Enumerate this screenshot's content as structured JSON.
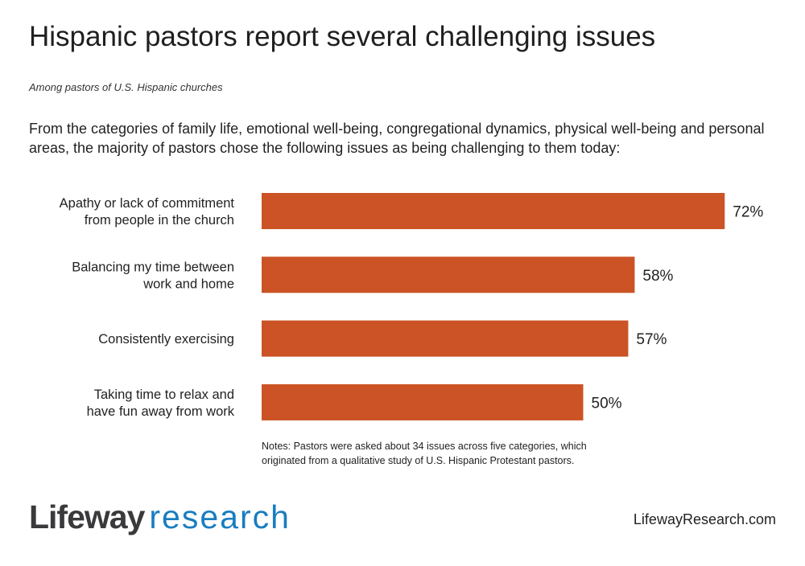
{
  "title": "Hispanic pastors report several challenging issues",
  "subtitle": "Among pastors of U.S. Hispanic churches",
  "description": "From the categories of family life, emotional well-being, congregational dynamics, physical well-being and personal areas, the majority of pastors chose the following issues as being challenging to them today:",
  "notes": "Notes: Pastors were asked about 34 issues across five categories, which originated from a qualitative study of U.S. Hispanic Protestant pastors.",
  "logo": {
    "part1": "Lifeway",
    "part2": "research"
  },
  "url": "LifewayResearch.com",
  "colors": {
    "bar": "#CB5325",
    "logo_dark": "#3a3a3c",
    "logo_blue": "#1a7dc0"
  },
  "chart_data": {
    "type": "bar",
    "orientation": "horizontal",
    "categories": [
      [
        "Apathy or lack of commitment",
        "from people in the church"
      ],
      [
        "Balancing my time between",
        "work and home"
      ],
      [
        "Consistently exercising"
      ],
      [
        "Taking time to relax and",
        "have fun away from work"
      ]
    ],
    "values": [
      72,
      58,
      57,
      50
    ],
    "data_labels": [
      "72%",
      "58%",
      "57%",
      "50%"
    ],
    "xlim": [
      0,
      100
    ],
    "grid": false,
    "axes_visible": false
  }
}
